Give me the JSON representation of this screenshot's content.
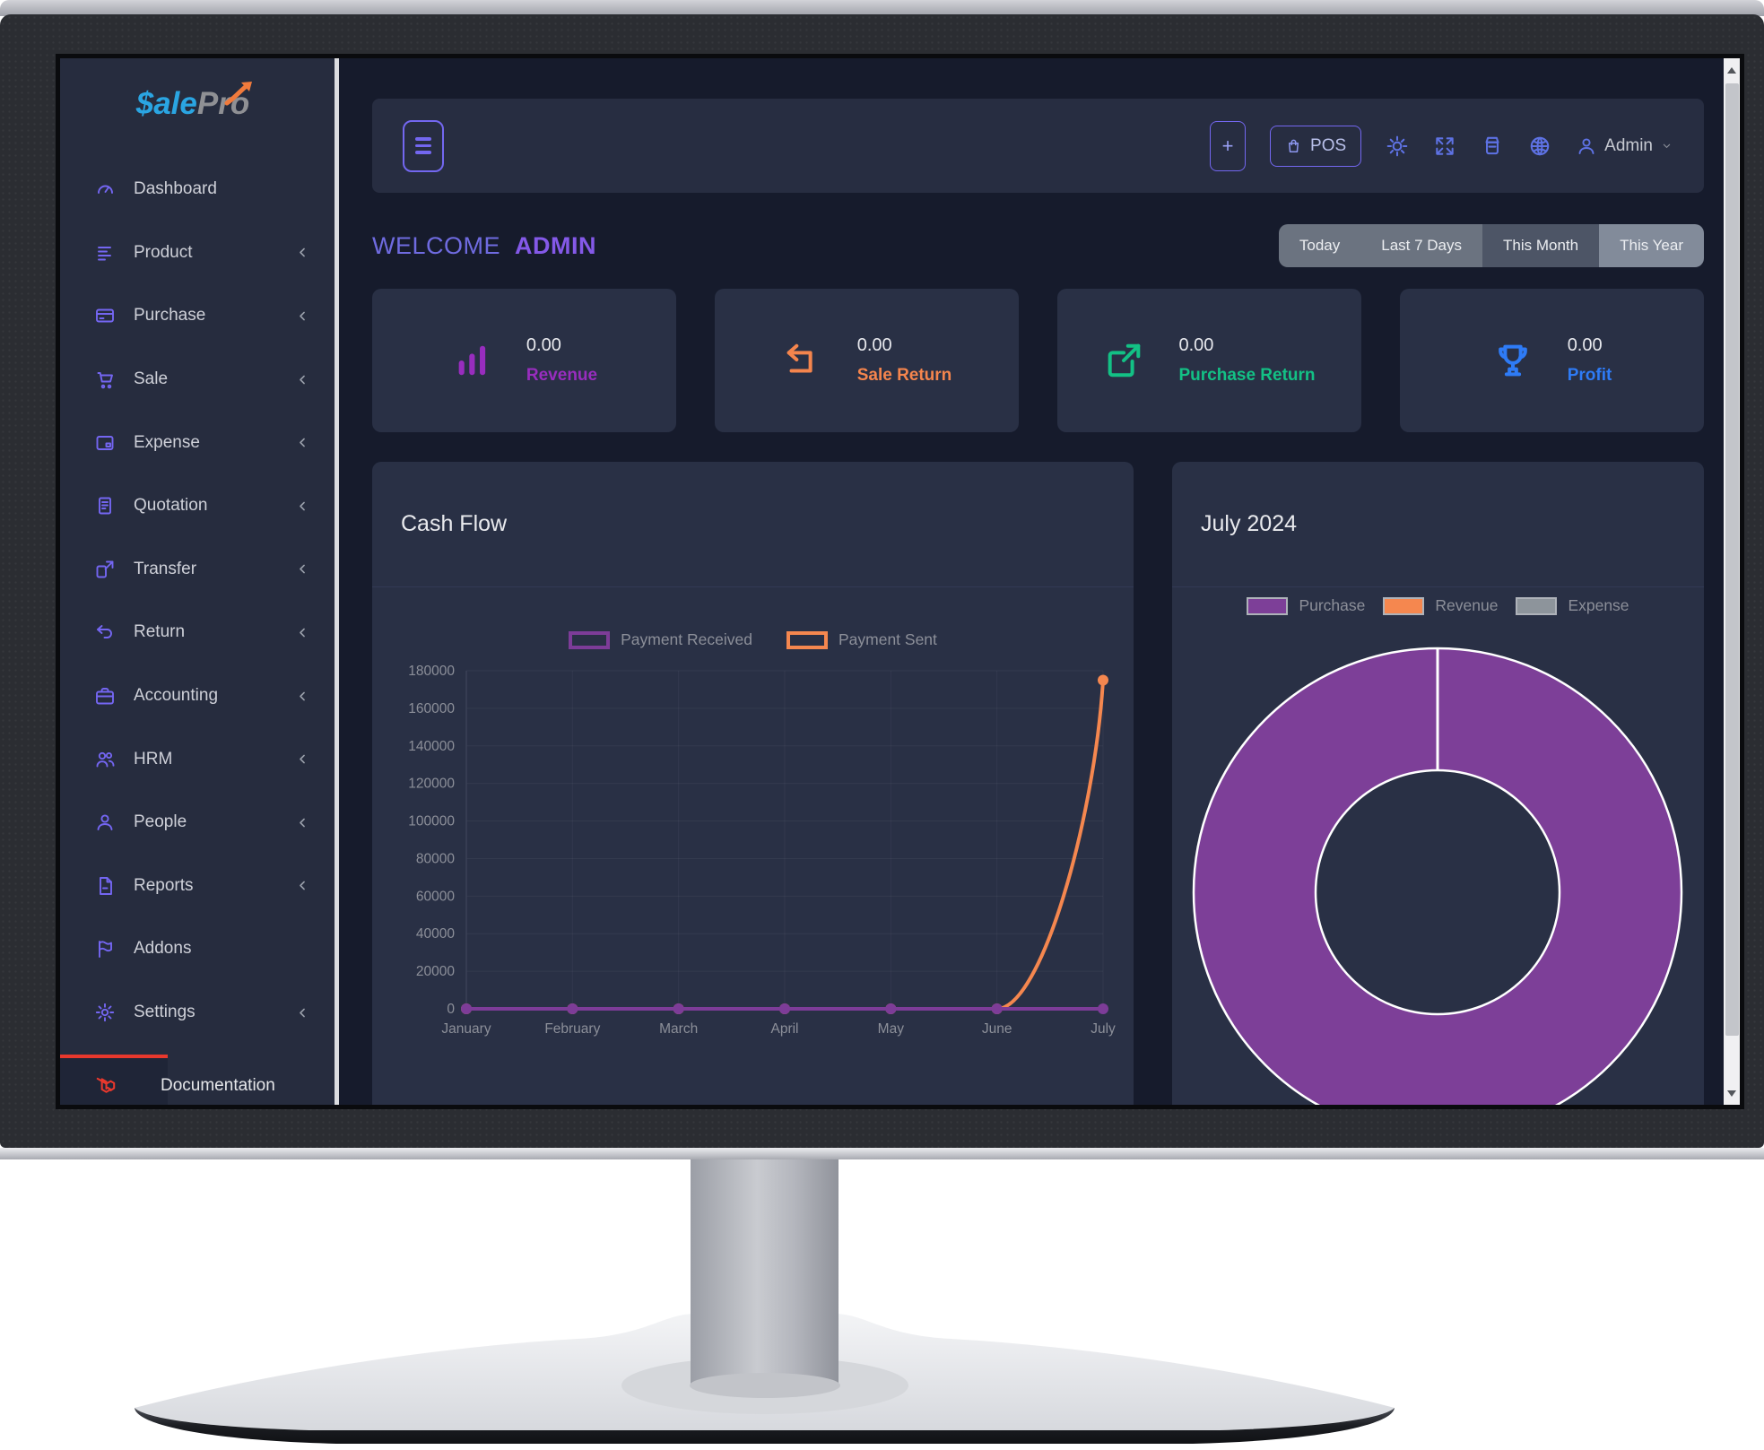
{
  "sidebar": {
    "logo": {
      "primary": "$ale",
      "secondary": "Pro"
    },
    "items": [
      {
        "label": "Dashboard",
        "icon": "gauge",
        "has_submenu": false
      },
      {
        "label": "Product",
        "icon": "list",
        "has_submenu": true
      },
      {
        "label": "Purchase",
        "icon": "credit-card",
        "has_submenu": true
      },
      {
        "label": "Sale",
        "icon": "cart",
        "has_submenu": true
      },
      {
        "label": "Expense",
        "icon": "wallet",
        "has_submenu": true
      },
      {
        "label": "Quotation",
        "icon": "doc-lines",
        "has_submenu": true
      },
      {
        "label": "Transfer",
        "icon": "share",
        "has_submenu": true
      },
      {
        "label": "Return",
        "icon": "undo",
        "has_submenu": true
      },
      {
        "label": "Accounting",
        "icon": "briefcase",
        "has_submenu": true
      },
      {
        "label": "HRM",
        "icon": "users",
        "has_submenu": true
      },
      {
        "label": "People",
        "icon": "user",
        "has_submenu": true
      },
      {
        "label": "Reports",
        "icon": "file",
        "has_submenu": true
      },
      {
        "label": "Addons",
        "icon": "flag",
        "has_submenu": false
      },
      {
        "label": "Settings",
        "icon": "gear",
        "has_submenu": true
      }
    ],
    "documentation_label": "Documentation"
  },
  "topbar": {
    "pos_label": "POS",
    "admin_label": "Admin",
    "icon_buttons": [
      "sun",
      "expand",
      "register",
      "globe"
    ]
  },
  "welcome": {
    "prefix": "WELCOME",
    "name": "ADMIN"
  },
  "filters": [
    {
      "label": "Today",
      "variant": "normal"
    },
    {
      "label": "Last 7 Days",
      "variant": "normal"
    },
    {
      "label": "This Month",
      "variant": "active"
    },
    {
      "label": "This Year",
      "variant": "light"
    }
  ],
  "stats": [
    {
      "value": "0.00",
      "label": "Revenue",
      "color": "#982dbe",
      "icon": "bar-chart"
    },
    {
      "value": "0.00",
      "label": "Sale Return",
      "color": "#f5854d",
      "icon": "return-arrow"
    },
    {
      "value": "0.00",
      "label": "Purchase Return",
      "color": "#13c185",
      "icon": "share-box"
    },
    {
      "value": "0.00",
      "label": "Profit",
      "color": "#2e7bf6",
      "icon": "trophy"
    }
  ],
  "chart_data": [
    {
      "type": "line",
      "title": "Cash Flow",
      "x": [
        "January",
        "February",
        "March",
        "April",
        "May",
        "June",
        "July"
      ],
      "series": [
        {
          "name": "Payment Received",
          "color": "#7d3c98",
          "values": [
            0,
            0,
            0,
            0,
            0,
            0,
            0
          ]
        },
        {
          "name": "Payment Sent",
          "color": "#f5874f",
          "values": [
            0,
            0,
            0,
            0,
            0,
            0,
            175000
          ]
        }
      ],
      "ylim": [
        0,
        180000
      ],
      "ytick_step": 20000,
      "grid": true,
      "legend_position": "top"
    },
    {
      "type": "donut",
      "title": "July 2024",
      "labels": [
        "Purchase",
        "Revenue",
        "Expense"
      ],
      "colors": [
        "#7d3f98",
        "#f5874f",
        "#8d949b"
      ],
      "values": [
        100,
        0,
        0
      ],
      "legend_position": "top"
    }
  ]
}
